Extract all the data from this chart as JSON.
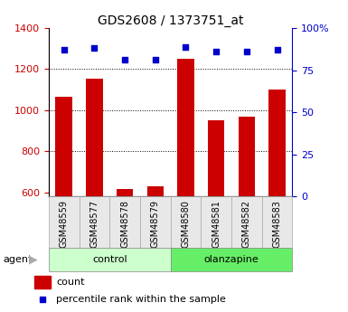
{
  "title": "GDS2608 / 1373751_at",
  "samples": [
    "GSM48559",
    "GSM48577",
    "GSM48578",
    "GSM48579",
    "GSM48580",
    "GSM48581",
    "GSM48582",
    "GSM48583"
  ],
  "counts": [
    1065,
    1155,
    615,
    630,
    1250,
    950,
    970,
    1100
  ],
  "percentiles": [
    87,
    88,
    81,
    81,
    89,
    86,
    86,
    87
  ],
  "bar_color": "#cc0000",
  "dot_color": "#0000cc",
  "ylim_left": [
    580,
    1400
  ],
  "ylim_right": [
    0,
    100
  ],
  "yticks_left": [
    600,
    800,
    1000,
    1200,
    1400
  ],
  "yticks_right": [
    0,
    25,
    50,
    75,
    100
  ],
  "bg_color": "#e8e8e8",
  "control_color": "#ccffcc",
  "olanzapine_color": "#66ee66",
  "agent_label": "agent",
  "legend_count": "count",
  "legend_pct": "percentile rank within the sample",
  "groups_info": [
    {
      "label": "control",
      "start": 0,
      "end": 3
    },
    {
      "label": "olanzapine",
      "start": 4,
      "end": 7
    }
  ]
}
